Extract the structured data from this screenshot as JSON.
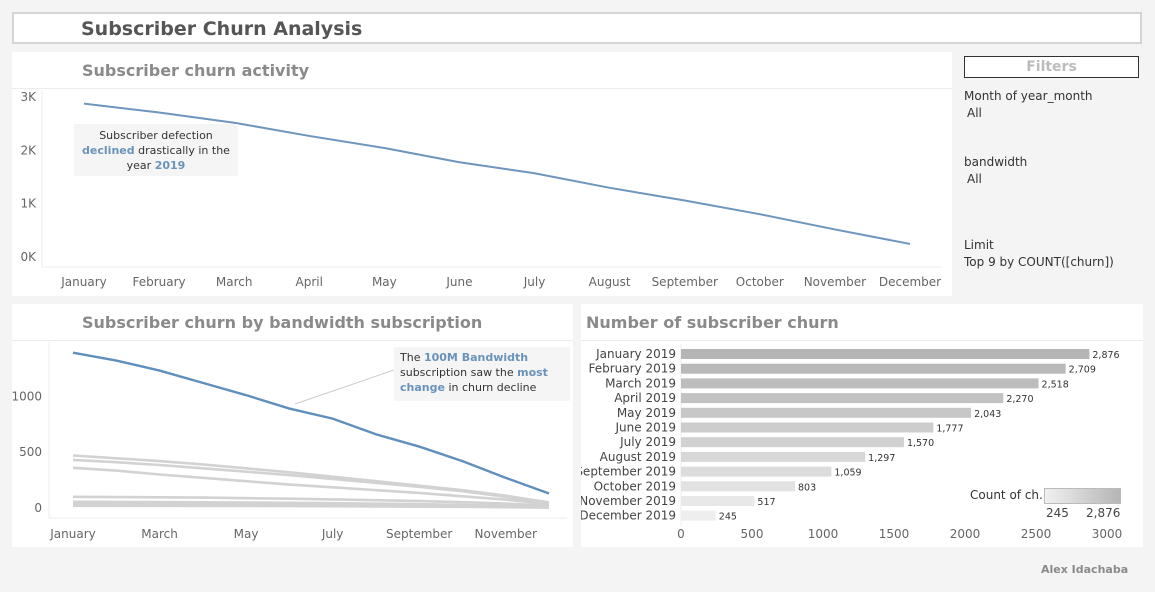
{
  "dashboard": {
    "title": "Subscriber Churn Analysis",
    "author": "Alex Idachaba"
  },
  "filters": {
    "title": "Filters",
    "month_label": "Month of year_month",
    "month_value": "All",
    "bandwidth_label": "bandwidth",
    "bandwidth_value": "All",
    "limit_label": "Limit",
    "limit_value": "Top 9 by COUNT([churn])"
  },
  "activity": {
    "title": "Subscriber churn activity",
    "annotation": {
      "line1": "Subscriber defection",
      "highlight1": "declined",
      "line2": "drastically in the",
      "line3": "year",
      "highlight2": "2019"
    },
    "colors": {
      "line": "#6d95bd"
    }
  },
  "bandwidth": {
    "title": "Subscriber churn by bandwidth subscription",
    "annotation": {
      "t1": "The",
      "h1": "100M Bandwidth",
      "t2": "subscription saw the",
      "h2": "most",
      "h3": "change",
      "t3": "in churn decline"
    }
  },
  "counts": {
    "title": "Number of subscriber churn",
    "legend_title": "Count of ch..",
    "legend_min": "245",
    "legend_max": "2,876"
  },
  "chart_data": [
    {
      "type": "line",
      "title": "Subscriber churn activity",
      "x": [
        "January",
        "February",
        "March",
        "April",
        "May",
        "June",
        "July",
        "August",
        "September",
        "October",
        "November",
        "December"
      ],
      "series": [
        {
          "values": [
            2876,
            2709,
            2518,
            2270,
            2043,
            1777,
            1570,
            1297,
            1059,
            803,
            517,
            245
          ]
        }
      ],
      "yticks": [
        "0K",
        "1K",
        "2K",
        "3K"
      ],
      "ylim": [
        0,
        3000
      ]
    },
    {
      "type": "line",
      "title": "Subscriber churn by bandwidth subscription",
      "x": [
        "January",
        "February",
        "March",
        "April",
        "May",
        "June",
        "July",
        "August",
        "September",
        "October",
        "November",
        "December"
      ],
      "xtick_labels": [
        "January",
        "March",
        "May",
        "July",
        "September",
        "November"
      ],
      "yticks": [
        "0",
        "500",
        "1000"
      ],
      "ylim": [
        0,
        1450
      ],
      "series": [
        {
          "values": [
            1390,
            1320,
            1230,
            1120,
            1010,
            890,
            800,
            660,
            550,
            420,
            270,
            130
          ],
          "color": "#5f8fbc"
        },
        {
          "values": [
            470,
            445,
            420,
            390,
            355,
            320,
            280,
            240,
            200,
            160,
            110,
            50
          ],
          "color": "#d2d2d2"
        },
        {
          "values": [
            430,
            410,
            385,
            355,
            325,
            295,
            260,
            225,
            190,
            150,
            100,
            45
          ],
          "color": "#d2d2d2"
        },
        {
          "values": [
            360,
            335,
            300,
            270,
            240,
            210,
            185,
            160,
            135,
            105,
            75,
            35
          ],
          "color": "#d2d2d2"
        },
        {
          "values": [
            100,
            98,
            96,
            93,
            88,
            83,
            77,
            70,
            62,
            52,
            40,
            22
          ],
          "color": "#d2d2d2"
        },
        {
          "values": [
            55,
            54,
            53,
            51,
            49,
            46,
            43,
            39,
            34,
            28,
            20,
            10
          ],
          "color": "#d2d2d2"
        },
        {
          "values": [
            40,
            39,
            38,
            37,
            35,
            33,
            31,
            28,
            24,
            20,
            14,
            7
          ],
          "color": "#d2d2d2"
        },
        {
          "values": [
            28,
            27,
            27,
            26,
            25,
            23,
            22,
            20,
            17,
            14,
            10,
            5
          ],
          "color": "#d2d2d2"
        },
        {
          "values": [
            20,
            20,
            19,
            18,
            18,
            17,
            16,
            14,
            12,
            10,
            7,
            4
          ],
          "color": "#d2d2d2"
        }
      ]
    },
    {
      "type": "bar",
      "title": "Number of subscriber churn",
      "orientation": "horizontal",
      "categories": [
        "January 2019",
        "February 2019",
        "March 2019",
        "April 2019",
        "May 2019",
        "June 2019",
        "July 2019",
        "August 2019",
        "September 2019",
        "October 2019",
        "November 2019",
        "December 2019"
      ],
      "values": [
        2876,
        2709,
        2518,
        2270,
        2043,
        1777,
        1570,
        1297,
        1059,
        803,
        517,
        245
      ],
      "value_labels": [
        "2,876",
        "2,709",
        "2,518",
        "2,270",
        "2,043",
        "1,777",
        "1,570",
        "1,297",
        "1,059",
        "803",
        "517",
        "245"
      ],
      "xticks": [
        "0",
        "500",
        "1000",
        "1500",
        "2000",
        "2500",
        "3000"
      ],
      "xlim": [
        0,
        3000
      ],
      "legend": "right",
      "color_range": [
        "#eeeeee",
        "#b5b5b5"
      ]
    }
  ]
}
